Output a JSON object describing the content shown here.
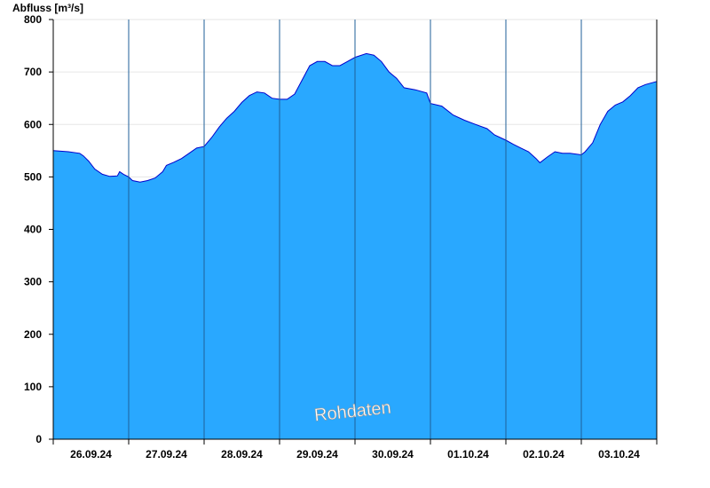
{
  "chart_data": {
    "type": "area",
    "title": "",
    "ylabel": "Abfluss [m³/s]",
    "xlabel": "",
    "ylim": [
      0,
      800
    ],
    "yticks": [
      0,
      100,
      200,
      300,
      400,
      500,
      600,
      700,
      800
    ],
    "day_labels": [
      "26.09.24",
      "27.09.24",
      "28.09.24",
      "29.09.24",
      "30.09.24",
      "01.10.24",
      "02.10.24",
      "03.10.24"
    ],
    "x_unit": "days from 26.09.24 00:00",
    "grid": "horizontal",
    "fill_color": "#29a8ff",
    "line_color": "#0000cc",
    "watermark": "Rohdaten",
    "series": [
      {
        "name": "",
        "points": [
          [
            0.0,
            550
          ],
          [
            0.2,
            548
          ],
          [
            0.35,
            545
          ],
          [
            0.4,
            540
          ],
          [
            0.47,
            530
          ],
          [
            0.55,
            515
          ],
          [
            0.65,
            505
          ],
          [
            0.75,
            501
          ],
          [
            0.85,
            502
          ],
          [
            0.88,
            510
          ],
          [
            0.93,
            505
          ],
          [
            1.0,
            500
          ],
          [
            1.05,
            493
          ],
          [
            1.15,
            490
          ],
          [
            1.25,
            493
          ],
          [
            1.35,
            498
          ],
          [
            1.45,
            510
          ],
          [
            1.5,
            522
          ],
          [
            1.6,
            528
          ],
          [
            1.7,
            535
          ],
          [
            1.8,
            545
          ],
          [
            1.9,
            555
          ],
          [
            2.0,
            558
          ],
          [
            2.1,
            575
          ],
          [
            2.2,
            595
          ],
          [
            2.3,
            612
          ],
          [
            2.4,
            625
          ],
          [
            2.5,
            642
          ],
          [
            2.6,
            655
          ],
          [
            2.7,
            662
          ],
          [
            2.8,
            660
          ],
          [
            2.9,
            650
          ],
          [
            3.0,
            648
          ],
          [
            3.1,
            648
          ],
          [
            3.2,
            658
          ],
          [
            3.3,
            685
          ],
          [
            3.4,
            712
          ],
          [
            3.5,
            720
          ],
          [
            3.6,
            720
          ],
          [
            3.7,
            712
          ],
          [
            3.8,
            712
          ],
          [
            3.9,
            720
          ],
          [
            4.0,
            728
          ],
          [
            4.15,
            735
          ],
          [
            4.25,
            732
          ],
          [
            4.35,
            720
          ],
          [
            4.45,
            700
          ],
          [
            4.55,
            688
          ],
          [
            4.65,
            670
          ],
          [
            4.8,
            666
          ],
          [
            4.95,
            660
          ],
          [
            5.0,
            640
          ],
          [
            5.15,
            635
          ],
          [
            5.3,
            618
          ],
          [
            5.45,
            608
          ],
          [
            5.6,
            600
          ],
          [
            5.75,
            592
          ],
          [
            5.85,
            580
          ],
          [
            6.0,
            570
          ],
          [
            6.1,
            562
          ],
          [
            6.2,
            555
          ],
          [
            6.3,
            548
          ],
          [
            6.4,
            535
          ],
          [
            6.45,
            527
          ],
          [
            6.55,
            538
          ],
          [
            6.65,
            548
          ],
          [
            6.75,
            545
          ],
          [
            6.85,
            545
          ],
          [
            7.0,
            542
          ],
          [
            7.05,
            548
          ],
          [
            7.15,
            565
          ],
          [
            7.25,
            600
          ],
          [
            7.35,
            625
          ],
          [
            7.45,
            637
          ],
          [
            7.55,
            643
          ],
          [
            7.65,
            655
          ],
          [
            7.75,
            670
          ],
          [
            7.85,
            676
          ],
          [
            8.0,
            682
          ]
        ]
      }
    ]
  }
}
